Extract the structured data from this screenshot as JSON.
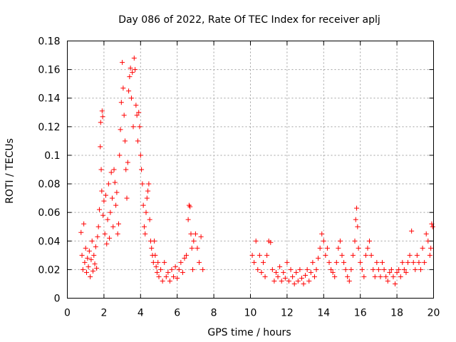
{
  "chart_data": {
    "type": "scatter",
    "title": "Day 086 of 2022, Rate Of TEC Index for receiver aplj",
    "xlabel": "GPS time / hours",
    "ylabel": "ROTI / TECUs",
    "xlim": [
      0,
      20
    ],
    "ylim": [
      0,
      0.18
    ],
    "x_ticks": [
      0,
      2,
      4,
      6,
      8,
      10,
      12,
      14,
      16,
      18,
      20
    ],
    "y_ticks": [
      0,
      0.02,
      0.04,
      0.06,
      0.08,
      0.1,
      0.12,
      0.14,
      0.16,
      0.18
    ],
    "x_tick_labels": [
      "0",
      "2",
      "4",
      "6",
      "8",
      "10",
      "12",
      "14",
      "16",
      "18",
      "20"
    ],
    "y_tick_labels": [
      "0",
      "0.02",
      "0.04",
      "0.06",
      "0.08",
      "0.1",
      "0.12",
      "0.14",
      "0.16",
      "0.18"
    ],
    "grid": true,
    "marker": "+",
    "color": "#ff0000",
    "series": [
      {
        "name": "ROTI",
        "points": [
          [
            0.75,
            0.046
          ],
          [
            0.8,
            0.03
          ],
          [
            0.85,
            0.02
          ],
          [
            0.9,
            0.052
          ],
          [
            0.95,
            0.025
          ],
          [
            1.0,
            0.035
          ],
          [
            1.05,
            0.018
          ],
          [
            1.1,
            0.028
          ],
          [
            1.15,
            0.022
          ],
          [
            1.2,
            0.033
          ],
          [
            1.25,
            0.015
          ],
          [
            1.3,
            0.027
          ],
          [
            1.35,
            0.04
          ],
          [
            1.4,
            0.019
          ],
          [
            1.45,
            0.03
          ],
          [
            1.5,
            0.024
          ],
          [
            1.55,
            0.036
          ],
          [
            1.6,
            0.021
          ],
          [
            1.65,
            0.043
          ],
          [
            1.7,
            0.05
          ],
          [
            1.75,
            0.062
          ],
          [
            1.8,
            0.106
          ],
          [
            1.82,
            0.123
          ],
          [
            1.85,
            0.09
          ],
          [
            1.88,
            0.075
          ],
          [
            1.9,
            0.131
          ],
          [
            1.93,
            0.127
          ],
          [
            1.95,
            0.058
          ],
          [
            2.0,
            0.068
          ],
          [
            2.05,
            0.045
          ],
          [
            2.1,
            0.072
          ],
          [
            2.15,
            0.038
          ],
          [
            2.2,
            0.055
          ],
          [
            2.25,
            0.08
          ],
          [
            2.3,
            0.042
          ],
          [
            2.35,
            0.06
          ],
          [
            2.4,
            0.088
          ],
          [
            2.45,
            0.07
          ],
          [
            2.5,
            0.05
          ],
          [
            2.55,
            0.09
          ],
          [
            2.6,
            0.081
          ],
          [
            2.65,
            0.065
          ],
          [
            2.7,
            0.074
          ],
          [
            2.75,
            0.045
          ],
          [
            2.8,
            0.052
          ],
          [
            2.85,
            0.1
          ],
          [
            2.9,
            0.118
          ],
          [
            2.95,
            0.137
          ],
          [
            3.0,
            0.165
          ],
          [
            3.05,
            0.147
          ],
          [
            3.1,
            0.128
          ],
          [
            3.15,
            0.11
          ],
          [
            3.2,
            0.09
          ],
          [
            3.25,
            0.07
          ],
          [
            3.3,
            0.095
          ],
          [
            3.35,
            0.145
          ],
          [
            3.4,
            0.155
          ],
          [
            3.45,
            0.161
          ],
          [
            3.5,
            0.14
          ],
          [
            3.55,
            0.158
          ],
          [
            3.6,
            0.12
          ],
          [
            3.65,
            0.168
          ],
          [
            3.7,
            0.16
          ],
          [
            3.75,
            0.135
          ],
          [
            3.8,
            0.128
          ],
          [
            3.85,
            0.11
          ],
          [
            3.9,
            0.13
          ],
          [
            3.95,
            0.12
          ],
          [
            4.0,
            0.1
          ],
          [
            4.05,
            0.09
          ],
          [
            4.1,
            0.08
          ],
          [
            4.15,
            0.065
          ],
          [
            4.2,
            0.05
          ],
          [
            4.25,
            0.045
          ],
          [
            4.3,
            0.06
          ],
          [
            4.35,
            0.07
          ],
          [
            4.4,
            0.075
          ],
          [
            4.45,
            0.08
          ],
          [
            4.5,
            0.055
          ],
          [
            4.55,
            0.04
          ],
          [
            4.6,
            0.035
          ],
          [
            4.65,
            0.03
          ],
          [
            4.7,
            0.025
          ],
          [
            4.75,
            0.04
          ],
          [
            4.8,
            0.03
          ],
          [
            4.85,
            0.022
          ],
          [
            4.9,
            0.018
          ],
          [
            4.95,
            0.025
          ],
          [
            5.0,
            0.015
          ],
          [
            5.1,
            0.02
          ],
          [
            5.2,
            0.012
          ],
          [
            5.3,
            0.025
          ],
          [
            5.4,
            0.015
          ],
          [
            5.5,
            0.018
          ],
          [
            5.6,
            0.012
          ],
          [
            5.7,
            0.02
          ],
          [
            5.8,
            0.015
          ],
          [
            5.9,
            0.022
          ],
          [
            6.0,
            0.014
          ],
          [
            6.1,
            0.02
          ],
          [
            6.2,
            0.025
          ],
          [
            6.3,
            0.018
          ],
          [
            6.4,
            0.028
          ],
          [
            6.5,
            0.03
          ],
          [
            6.6,
            0.055
          ],
          [
            6.65,
            0.065
          ],
          [
            6.7,
            0.064
          ],
          [
            6.75,
            0.045
          ],
          [
            6.8,
            0.035
          ],
          [
            6.85,
            0.02
          ],
          [
            6.9,
            0.04
          ],
          [
            7.0,
            0.045
          ],
          [
            7.1,
            0.035
          ],
          [
            7.2,
            0.025
          ],
          [
            7.3,
            0.043
          ],
          [
            7.4,
            0.02
          ],
          [
            10.1,
            0.03
          ],
          [
            10.2,
            0.025
          ],
          [
            10.3,
            0.04
          ],
          [
            10.4,
            0.02
          ],
          [
            10.5,
            0.03
          ],
          [
            10.6,
            0.018
          ],
          [
            10.7,
            0.025
          ],
          [
            10.8,
            0.015
          ],
          [
            10.9,
            0.03
          ],
          [
            11.0,
            0.04
          ],
          [
            11.1,
            0.039
          ],
          [
            11.2,
            0.02
          ],
          [
            11.3,
            0.012
          ],
          [
            11.4,
            0.018
          ],
          [
            11.5,
            0.015
          ],
          [
            11.6,
            0.022
          ],
          [
            11.7,
            0.012
          ],
          [
            11.8,
            0.018
          ],
          [
            11.9,
            0.014
          ],
          [
            12.0,
            0.025
          ],
          [
            12.1,
            0.012
          ],
          [
            12.2,
            0.02
          ],
          [
            12.3,
            0.015
          ],
          [
            12.4,
            0.01
          ],
          [
            12.5,
            0.018
          ],
          [
            12.6,
            0.012
          ],
          [
            12.7,
            0.02
          ],
          [
            12.8,
            0.014
          ],
          [
            12.9,
            0.01
          ],
          [
            13.0,
            0.016
          ],
          [
            13.1,
            0.02
          ],
          [
            13.2,
            0.012
          ],
          [
            13.3,
            0.018
          ],
          [
            13.4,
            0.025
          ],
          [
            13.5,
            0.015
          ],
          [
            13.6,
            0.02
          ],
          [
            13.7,
            0.028
          ],
          [
            13.8,
            0.035
          ],
          [
            13.9,
            0.045
          ],
          [
            14.0,
            0.04
          ],
          [
            14.1,
            0.03
          ],
          [
            14.2,
            0.035
          ],
          [
            14.3,
            0.025
          ],
          [
            14.4,
            0.02
          ],
          [
            14.5,
            0.018
          ],
          [
            14.6,
            0.015
          ],
          [
            14.7,
            0.025
          ],
          [
            14.8,
            0.035
          ],
          [
            14.9,
            0.04
          ],
          [
            15.0,
            0.03
          ],
          [
            15.1,
            0.025
          ],
          [
            15.2,
            0.02
          ],
          [
            15.3,
            0.015
          ],
          [
            15.4,
            0.012
          ],
          [
            15.5,
            0.02
          ],
          [
            15.6,
            0.03
          ],
          [
            15.7,
            0.04
          ],
          [
            15.75,
            0.055
          ],
          [
            15.8,
            0.063
          ],
          [
            15.85,
            0.05
          ],
          [
            15.9,
            0.035
          ],
          [
            16.0,
            0.025
          ],
          [
            16.1,
            0.02
          ],
          [
            16.2,
            0.015
          ],
          [
            16.3,
            0.03
          ],
          [
            16.4,
            0.035
          ],
          [
            16.5,
            0.04
          ],
          [
            16.6,
            0.03
          ],
          [
            16.7,
            0.02
          ],
          [
            16.8,
            0.015
          ],
          [
            16.9,
            0.025
          ],
          [
            17.0,
            0.02
          ],
          [
            17.1,
            0.015
          ],
          [
            17.2,
            0.025
          ],
          [
            17.3,
            0.02
          ],
          [
            17.4,
            0.015
          ],
          [
            17.5,
            0.012
          ],
          [
            17.6,
            0.018
          ],
          [
            17.7,
            0.02
          ],
          [
            17.8,
            0.015
          ],
          [
            17.9,
            0.01
          ],
          [
            18.0,
            0.018
          ],
          [
            18.1,
            0.02
          ],
          [
            18.2,
            0.015
          ],
          [
            18.3,
            0.025
          ],
          [
            18.4,
            0.02
          ],
          [
            18.5,
            0.018
          ],
          [
            18.6,
            0.025
          ],
          [
            18.7,
            0.03
          ],
          [
            18.8,
            0.047
          ],
          [
            18.9,
            0.025
          ],
          [
            19.0,
            0.02
          ],
          [
            19.1,
            0.03
          ],
          [
            19.2,
            0.025
          ],
          [
            19.3,
            0.02
          ],
          [
            19.4,
            0.035
          ],
          [
            19.5,
            0.025
          ],
          [
            19.6,
            0.045
          ],
          [
            19.7,
            0.04
          ],
          [
            19.8,
            0.03
          ],
          [
            19.85,
            0.035
          ],
          [
            19.9,
            0.052
          ],
          [
            19.95,
            0.05
          ]
        ]
      }
    ]
  }
}
